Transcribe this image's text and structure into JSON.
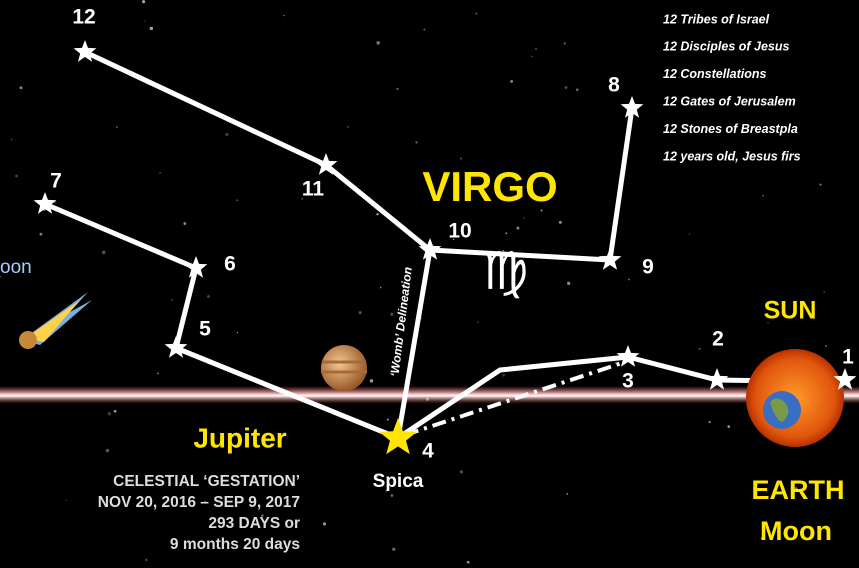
{
  "title": "VIRGO",
  "symbol": "♍",
  "womb_label": "‘Womb’ Delineation",
  "stars": [
    "1",
    "2",
    "3",
    "4",
    "5",
    "6",
    "7",
    "8",
    "9",
    "10",
    "11",
    "12"
  ],
  "labels": {
    "spica": "Spica",
    "jupiter": "Jupiter",
    "sun": "SUN",
    "earth": "EARTH",
    "moon": "Moon",
    "cut_left": "oon"
  },
  "list": [
    "12 Tribes of Israel",
    "12 Disciples of Jesus",
    "12 Constellations",
    "12 Gates of Jerusalem",
    "12 Stones of Breastpla",
    "12 years old, Jesus firs"
  ],
  "gestation": [
    "CELESTIAL ‘GESTATION’",
    "NOV 20, 2016 – SEP 9, 2017",
    "293 DAYS or",
    "9 months 20 days"
  ]
}
